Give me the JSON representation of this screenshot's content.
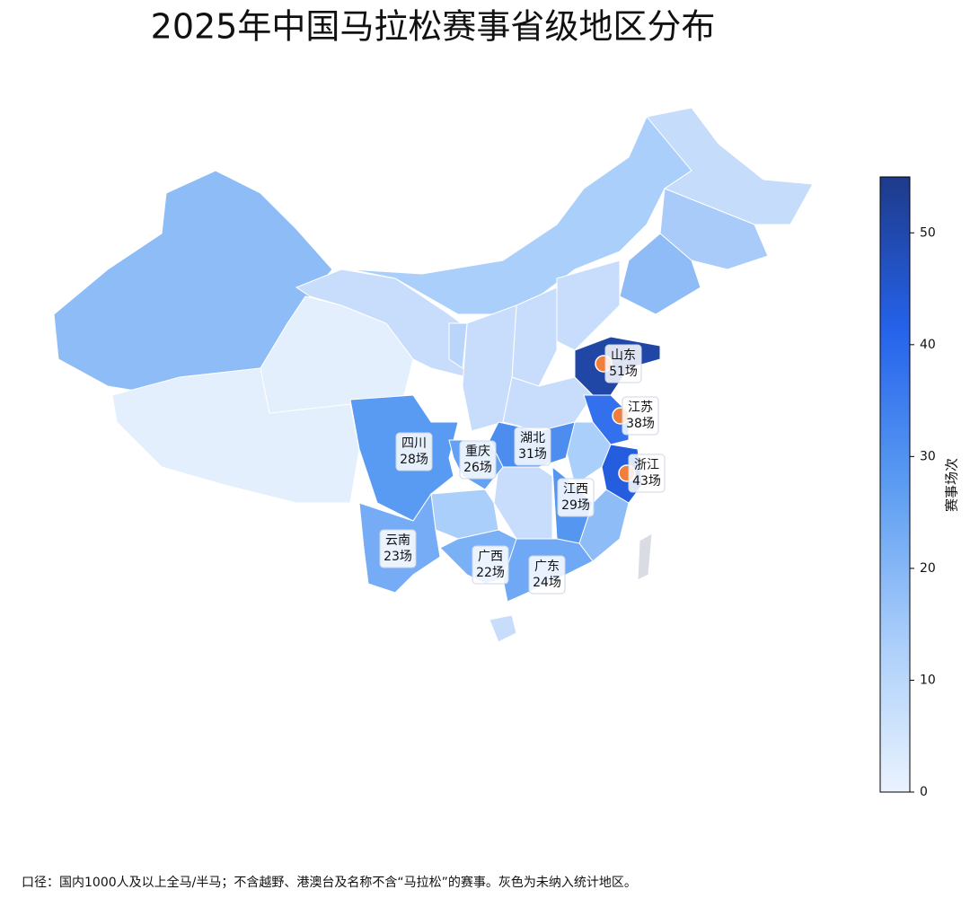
{
  "chart_data": {
    "type": "choropleth",
    "title": "2025年中国马拉松赛事省级地区分布",
    "categories": [
      "山东",
      "江苏",
      "浙江",
      "湖北",
      "四川",
      "重庆",
      "江西",
      "云南",
      "广西",
      "广东"
    ],
    "values": [
      51,
      38,
      43,
      31,
      28,
      26,
      29,
      23,
      22,
      24
    ],
    "value_labels": [
      "51场",
      "38场",
      "43场",
      "31场",
      "28场",
      "26场",
      "29场",
      "23场",
      "22场",
      "24场"
    ],
    "colorscale": [
      "#eaf3fe",
      "#a9cdfa",
      "#5b9cf2",
      "#2563eb",
      "#1e3a8a"
    ],
    "vlim": [
      0,
      55
    ],
    "ticks": [
      0,
      10,
      20,
      30,
      40,
      50
    ],
    "colorbar_label": "赛事场次",
    "note": "口径：国内1000人及以上全马/半马；不含越野、港澳台及名称不含“马拉松”的赛事。灰色为未纳入统计地区。"
  }
}
